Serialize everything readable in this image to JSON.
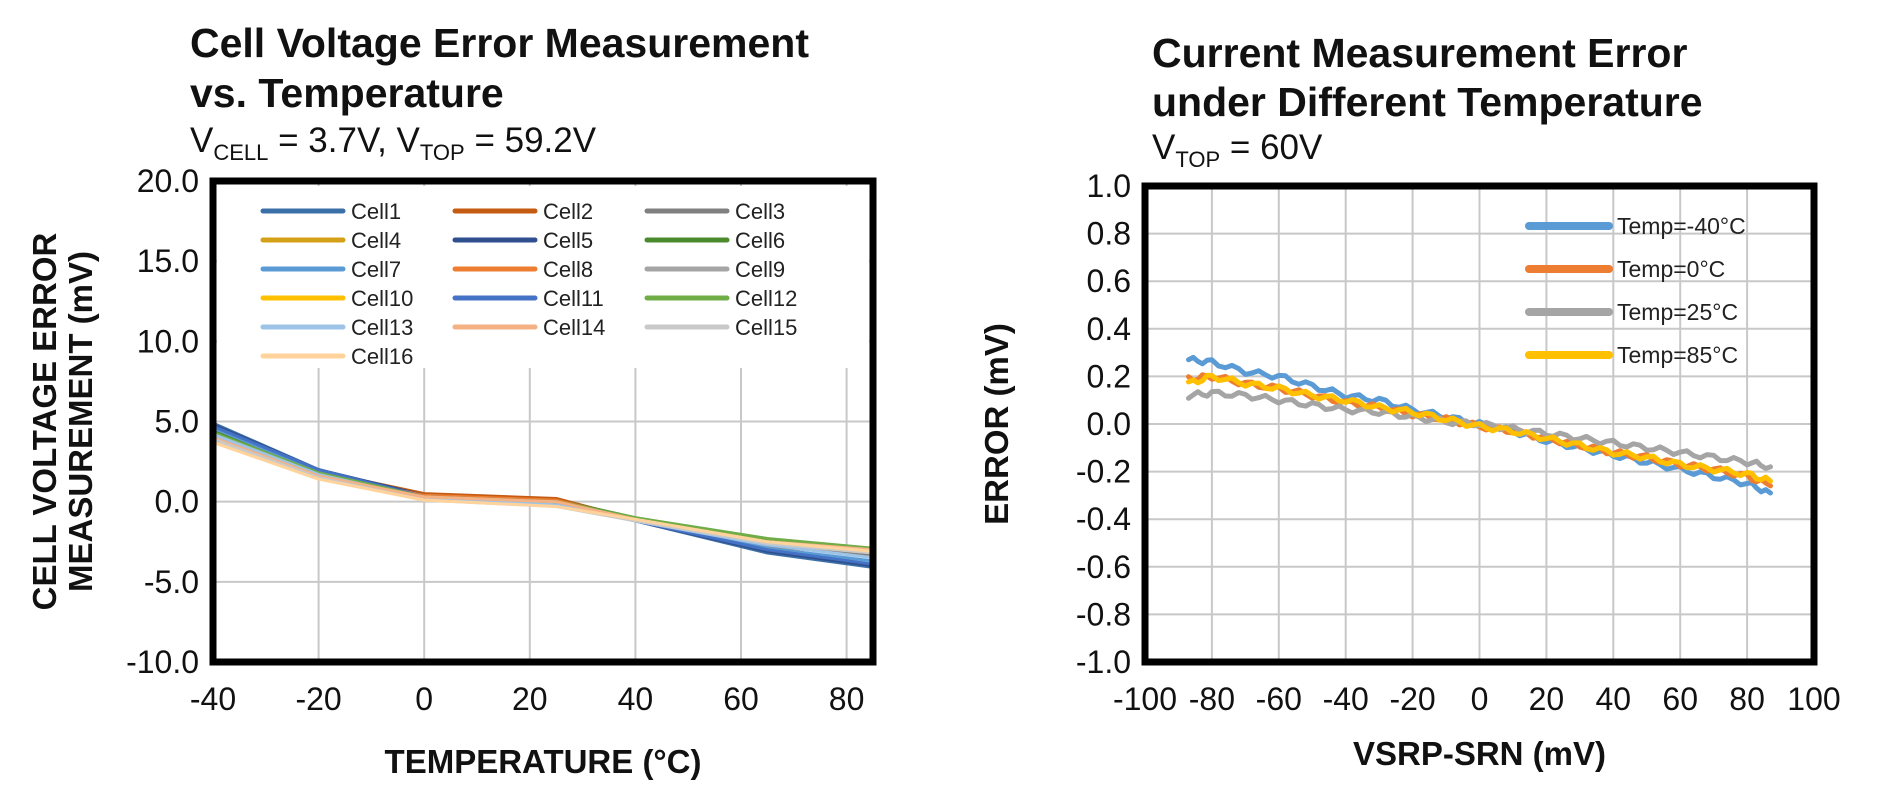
{
  "chart_data": [
    {
      "type": "line",
      "title_line1": "Cell Voltage Error Measurement",
      "title_line2": "vs. Temperature",
      "subtitle": {
        "v1": "V",
        "v1_sub": "CELL",
        "v1_rest": " = 3.7V, ",
        "v2": "V",
        "v2_sub": "TOP",
        "v2_rest": " = 59.2V"
      },
      "xlabel": "TEMPERATURE (°C)",
      "ylabel_line1": "CELL VOLTAGE ERROR",
      "ylabel_line2": "MEASUREMENT (mV)",
      "xlim": [
        -40,
        85
      ],
      "ylim": [
        -10,
        20
      ],
      "xticks": [
        -40,
        -20,
        0,
        20,
        40,
        60,
        80
      ],
      "xtick_labels": [
        "-40",
        "-20",
        "0",
        "20",
        "40",
        "60",
        "80"
      ],
      "yticks": [
        -10,
        -5,
        0,
        5,
        10,
        15,
        20
      ],
      "ytick_labels": [
        "-10.0",
        "-5.0",
        "0.0",
        "5.0",
        "10.0",
        "15.0",
        "20.0"
      ],
      "grid": true,
      "legend_position": "top",
      "x": [
        -40,
        -20,
        0,
        25,
        40,
        65,
        85
      ],
      "series": [
        {
          "name": "Cell1",
          "color": "#3b6fa8",
          "values": [
            4.9,
            2.0,
            0.3,
            0.0,
            -1.2,
            -3.2,
            -4.1
          ]
        },
        {
          "name": "Cell2",
          "color": "#c55a11",
          "values": [
            4.6,
            1.9,
            0.5,
            0.2,
            -1.1,
            -2.8,
            -3.3
          ]
        },
        {
          "name": "Cell3",
          "color": "#808080",
          "values": [
            4.3,
            1.7,
            0.3,
            -0.1,
            -1.2,
            -2.7,
            -3.3
          ]
        },
        {
          "name": "Cell4",
          "color": "#d4a017",
          "values": [
            4.0,
            1.6,
            0.2,
            -0.2,
            -1.1,
            -2.6,
            -3.2
          ]
        },
        {
          "name": "Cell5",
          "color": "#2f4f8f",
          "values": [
            4.8,
            2.0,
            0.4,
            0.0,
            -1.2,
            -3.1,
            -4.0
          ]
        },
        {
          "name": "Cell6",
          "color": "#4c8a2e",
          "values": [
            4.4,
            1.8,
            0.3,
            0.1,
            -1.0,
            -2.4,
            -3.0
          ]
        },
        {
          "name": "Cell7",
          "color": "#5b9bd5",
          "values": [
            4.6,
            1.9,
            0.3,
            -0.1,
            -1.2,
            -2.9,
            -3.7
          ]
        },
        {
          "name": "Cell8",
          "color": "#ed7d31",
          "values": [
            4.2,
            1.7,
            0.4,
            0.1,
            -1.1,
            -2.6,
            -3.0
          ]
        },
        {
          "name": "Cell9",
          "color": "#a5a5a5",
          "values": [
            4.1,
            1.6,
            0.2,
            -0.2,
            -1.2,
            -2.6,
            -3.2
          ]
        },
        {
          "name": "Cell10",
          "color": "#ffc000",
          "values": [
            3.8,
            1.5,
            0.1,
            -0.2,
            -1.1,
            -2.5,
            -3.1
          ]
        },
        {
          "name": "Cell11",
          "color": "#4472c4",
          "values": [
            4.7,
            2.0,
            0.3,
            0.0,
            -1.2,
            -3.0,
            -3.9
          ]
        },
        {
          "name": "Cell12",
          "color": "#70ad47",
          "values": [
            4.3,
            1.8,
            0.3,
            0.0,
            -1.0,
            -2.3,
            -2.9
          ]
        },
        {
          "name": "Cell13",
          "color": "#9dc3e6",
          "values": [
            4.2,
            1.7,
            0.2,
            -0.2,
            -1.2,
            -2.7,
            -3.5
          ]
        },
        {
          "name": "Cell14",
          "color": "#f4b183",
          "values": [
            4.0,
            1.6,
            0.3,
            0.0,
            -1.1,
            -2.5,
            -3.0
          ]
        },
        {
          "name": "Cell15",
          "color": "#c9c9c9",
          "values": [
            3.9,
            1.5,
            0.1,
            -0.3,
            -1.2,
            -2.6,
            -3.2
          ]
        },
        {
          "name": "Cell16",
          "color": "#ffd39b",
          "values": [
            3.7,
            1.4,
            0.1,
            -0.3,
            -1.1,
            -2.5,
            -3.1
          ]
        }
      ]
    },
    {
      "type": "line",
      "title_line1": "Current Measurement Error",
      "title_line2": "under Different Temperature",
      "subtitle": {
        "v1": "V",
        "v1_sub": "TOP",
        "v1_rest": " = 60V"
      },
      "xlabel": "VSRP-SRN (mV)",
      "ylabel": "ERROR (mV)",
      "xlim": [
        -100,
        100
      ],
      "ylim": [
        -1.0,
        1.0
      ],
      "xticks": [
        -100,
        -80,
        -60,
        -40,
        -20,
        0,
        20,
        40,
        60,
        80,
        100
      ],
      "xtick_labels": [
        "-100",
        "-80",
        "-60",
        "-40",
        "-20",
        "0",
        "20",
        "40",
        "60",
        "80",
        "100"
      ],
      "yticks": [
        -1.0,
        -0.8,
        -0.6,
        -0.4,
        -0.2,
        0.0,
        0.2,
        0.4,
        0.6,
        0.8,
        1.0
      ],
      "ytick_labels": [
        "-1.0",
        "-0.8",
        "-0.6",
        "-0.4",
        "-0.2",
        "0.0",
        "0.2",
        "0.4",
        "0.6",
        "0.8",
        "1.0"
      ],
      "grid": true,
      "legend_position": "top-right",
      "x": [
        -87,
        -80,
        -70,
        -60,
        -50,
        -40,
        -30,
        -20,
        -10,
        0,
        10,
        20,
        30,
        40,
        50,
        60,
        70,
        80,
        87
      ],
      "series": [
        {
          "name": "Temp=-40°C",
          "color": "#5b9bd5",
          "values": [
            0.27,
            0.26,
            0.22,
            0.2,
            0.16,
            0.12,
            0.1,
            0.06,
            0.03,
            0.0,
            -0.03,
            -0.07,
            -0.1,
            -0.13,
            -0.16,
            -0.19,
            -0.22,
            -0.25,
            -0.29
          ]
        },
        {
          "name": "Temp=0°C",
          "color": "#ed7d31",
          "values": [
            0.19,
            0.2,
            0.17,
            0.15,
            0.12,
            0.09,
            0.07,
            0.04,
            0.02,
            -0.01,
            -0.03,
            -0.06,
            -0.09,
            -0.12,
            -0.14,
            -0.17,
            -0.19,
            -0.22,
            -0.26
          ]
        },
        {
          "name": "Temp=25°C",
          "color": "#a5a5a5",
          "values": [
            0.12,
            0.13,
            0.12,
            0.1,
            0.08,
            0.06,
            0.05,
            0.03,
            0.01,
            0.0,
            -0.02,
            -0.04,
            -0.06,
            -0.08,
            -0.1,
            -0.12,
            -0.14,
            -0.16,
            -0.18
          ]
        },
        {
          "name": "Temp=85°C",
          "color": "#ffc000",
          "values": [
            0.17,
            0.2,
            0.17,
            0.15,
            0.12,
            0.1,
            0.07,
            0.05,
            0.02,
            -0.01,
            -0.03,
            -0.06,
            -0.09,
            -0.12,
            -0.14,
            -0.17,
            -0.19,
            -0.21,
            -0.24
          ]
        }
      ]
    }
  ]
}
